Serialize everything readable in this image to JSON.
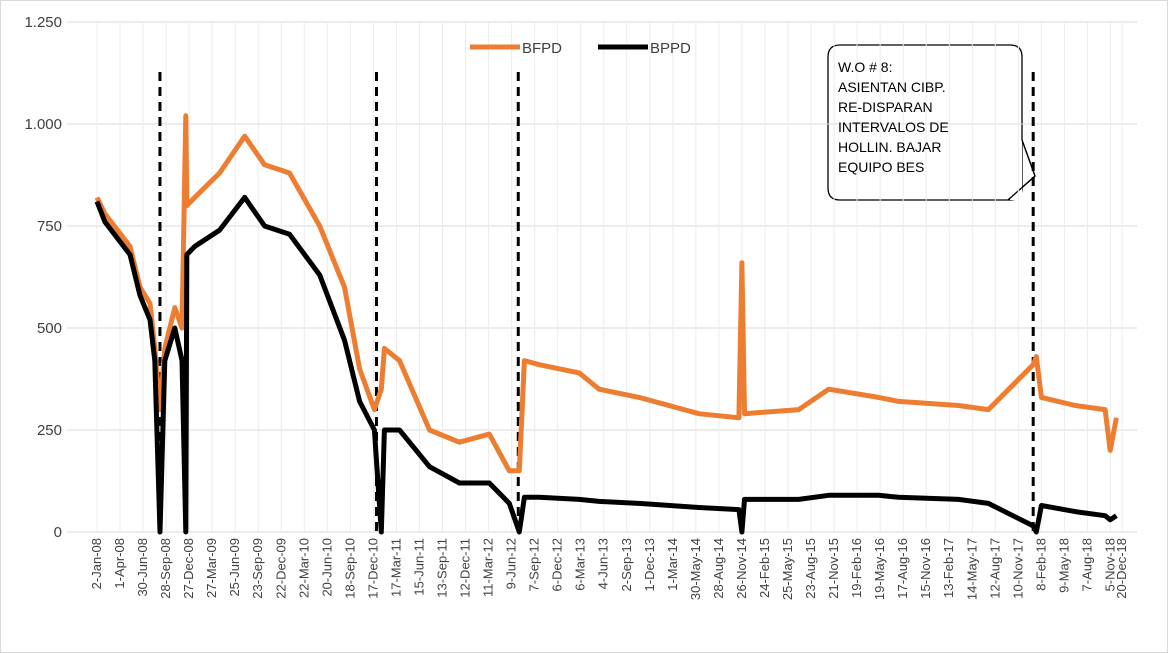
{
  "chart_data": {
    "type": "line",
    "x": [
      "2-Jan-08",
      "2-Feb-08",
      "10-May-08",
      "18-Jun-08",
      "27-Jul-08",
      "15-Aug-08",
      "4-Sep-08",
      "23-Sep-08",
      "1-Nov-08",
      "29-Nov-08",
      "14-Dec-08",
      "18-Dec-08",
      "18-Jan-09",
      "25-Apr-09",
      "1-Aug-09",
      "18-Oct-09",
      "23-Jan-10",
      "21-May-10",
      "26-Aug-10",
      "24-Oct-10",
      "21-Dec-10",
      "17-Jan-11",
      "29-Jan-11",
      "29-Mar-11",
      "24-Jul-11",
      "18-Nov-11",
      "14-Mar-12",
      "31-May-12",
      "9-Jul-12",
      "29-Jul-12",
      "25-Sep-12",
      "28-Feb-13",
      "17-May-13",
      "20-Oct-13",
      "11-Jun-14",
      "14-Nov-14",
      "26-Nov-14",
      "6-Dec-14",
      "6-Jul-15",
      "31-Oct-15",
      "13-May-16",
      "30-Jul-16",
      "21-Mar-17",
      "16-Jul-17",
      "7-Jan-18",
      "19-Jan-18",
      "8-Feb-18",
      "20-Jun-18",
      "15-Oct-18",
      "4-Nov-18",
      "28-Nov-18"
    ],
    "series": [
      {
        "name": "BFPD",
        "color": "#ed7d31",
        "values": [
          820,
          780,
          700,
          600,
          560,
          450,
          300,
          450,
          550,
          500,
          1020,
          800,
          820,
          880,
          970,
          900,
          880,
          750,
          600,
          400,
          300,
          350,
          450,
          420,
          250,
          220,
          240,
          150,
          150,
          420,
          410,
          390,
          350,
          330,
          290,
          280,
          660,
          290,
          300,
          350,
          330,
          320,
          310,
          300,
          410,
          430,
          330,
          310,
          300,
          200,
          280
        ]
      },
      {
        "name": "BPPD",
        "color": "#000000",
        "values": [
          810,
          760,
          680,
          580,
          520,
          420,
          0,
          420,
          500,
          420,
          0,
          680,
          700,
          740,
          820,
          750,
          730,
          630,
          470,
          320,
          250,
          0,
          250,
          250,
          160,
          120,
          120,
          70,
          0,
          85,
          85,
          80,
          75,
          70,
          60,
          55,
          0,
          80,
          80,
          90,
          90,
          85,
          80,
          70,
          15,
          0,
          65,
          50,
          40,
          30,
          40
        ]
      }
    ],
    "xlim": [
      "2-Jan-08",
      "20-Dec-18"
    ],
    "xticks": [
      "2-Jan-08",
      "1-Apr-08",
      "30-Jun-08",
      "28-Sep-08",
      "27-Dec-08",
      "27-Mar-09",
      "25-Jun-09",
      "23-Sep-09",
      "22-Dec-09",
      "22-Mar-10",
      "20-Jun-10",
      "18-Sep-10",
      "17-Dec-10",
      "17-Mar-11",
      "15-Jun-11",
      "13-Sep-11",
      "12-Dec-11",
      "11-Mar-12",
      "9-Jun-12",
      "7-Sep-12",
      "6-Dec-12",
      "6-Mar-13",
      "4-Jun-13",
      "2-Sep-13",
      "1-Dec-13",
      "1-Mar-14",
      "30-May-14",
      "28-Aug-14",
      "26-Nov-14",
      "24-Feb-15",
      "25-May-15",
      "23-Aug-15",
      "21-Nov-15",
      "19-Feb-16",
      "19-May-16",
      "17-Aug-16",
      "15-Nov-16",
      "13-Feb-17",
      "14-May-17",
      "12-Aug-17",
      "10-Nov-17",
      "8-Feb-18",
      "9-May-18",
      "7-Aug-18",
      "5-Nov-18",
      "20-Dec-18"
    ],
    "ylim": [
      0,
      1250
    ],
    "yticks": [
      0,
      250,
      500,
      750,
      {
        "value": 1000,
        "label": "1.000"
      },
      {
        "value": 1250,
        "label": "1.250"
      }
    ],
    "grid": true,
    "legend": "top",
    "events": [
      "4-Sep-08",
      "29-Dec-10",
      "5-Jul-12",
      "7-Jan-18"
    ],
    "annotation": {
      "lines": [
        "W.O # 8:",
        "ASIENTAN CIBP.",
        "RE-DISPARAN",
        "INTERVALOS DE",
        "HOLLIN. BAJAR",
        "EQUIPO BES"
      ]
    }
  }
}
